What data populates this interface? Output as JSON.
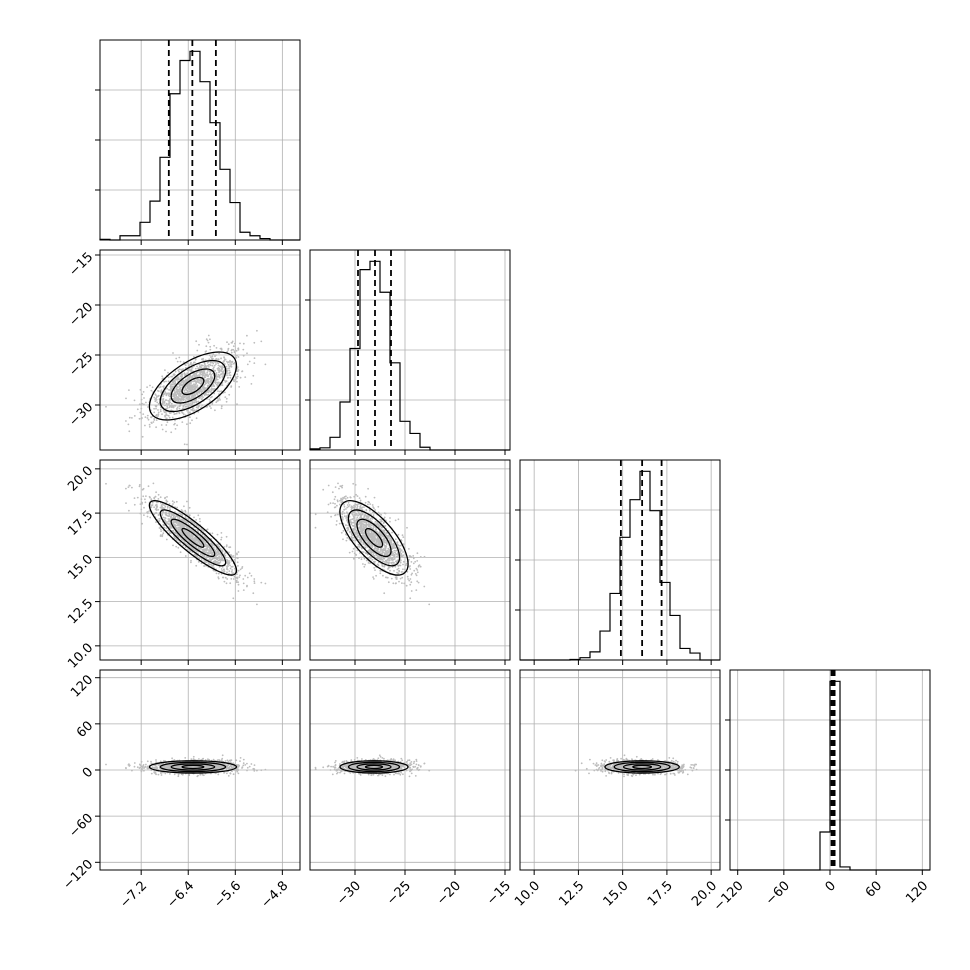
{
  "chart_data": {
    "type": "corner",
    "params": [
      {
        "axis": {
          "min": -7.9,
          "max": -4.5,
          "ticks": [
            -7.2,
            -6.4,
            -5.6,
            -4.8
          ],
          "tick_labels": [
            "−7.2",
            "−6.4",
            "−5.6",
            "−4.8"
          ]
        },
        "mean": -6.32,
        "sd": 0.37,
        "q": [
          -6.73,
          -6.33,
          -5.93
        ]
      },
      {
        "axis": {
          "min": -34.5,
          "max": -14.5,
          "ticks": [
            -30,
            -25,
            -20,
            -15
          ],
          "tick_labels": [
            "−30",
            "−25",
            "−20",
            "−15"
          ]
        },
        "mean": -28.1,
        "sd": 1.7,
        "q": [
          -29.7,
          -28.0,
          -26.4
        ]
      },
      {
        "axis": {
          "min": 9.2,
          "max": 20.5,
          "ticks": [
            10.0,
            12.5,
            15.0,
            17.5,
            20.0
          ],
          "tick_labels": [
            "10.0",
            "12.5",
            "15.0",
            "17.5",
            "20.0"
          ]
        },
        "mean": 16.1,
        "sd": 1.05,
        "q": [
          14.9,
          16.1,
          17.2
        ]
      },
      {
        "axis": {
          "min": -130,
          "max": 130,
          "ticks": [
            -120,
            -60,
            0,
            60,
            120
          ],
          "tick_labels": [
            "−120",
            "−60",
            "0",
            "60",
            "120"
          ]
        },
        "mean": 4.0,
        "sd": 4.0,
        "q": [
          2.0,
          4.0,
          6.0
        ]
      }
    ],
    "correlations": [
      [
        1,
        0.6,
        -0.88,
        0.0
      ],
      [
        0.6,
        1,
        -0.7,
        0.0
      ],
      [
        -0.88,
        -0.7,
        1,
        0.0
      ],
      [
        0.0,
        0.0,
        0.0,
        1
      ]
    ],
    "hist_bins": 20,
    "contour_levels_sigma": [
      0.5,
      1.0,
      1.5,
      2.0
    ],
    "grid": true,
    "colors": {
      "points": "#bdbdbd",
      "lines": "#000000",
      "grid": "#b0b0b0"
    }
  }
}
